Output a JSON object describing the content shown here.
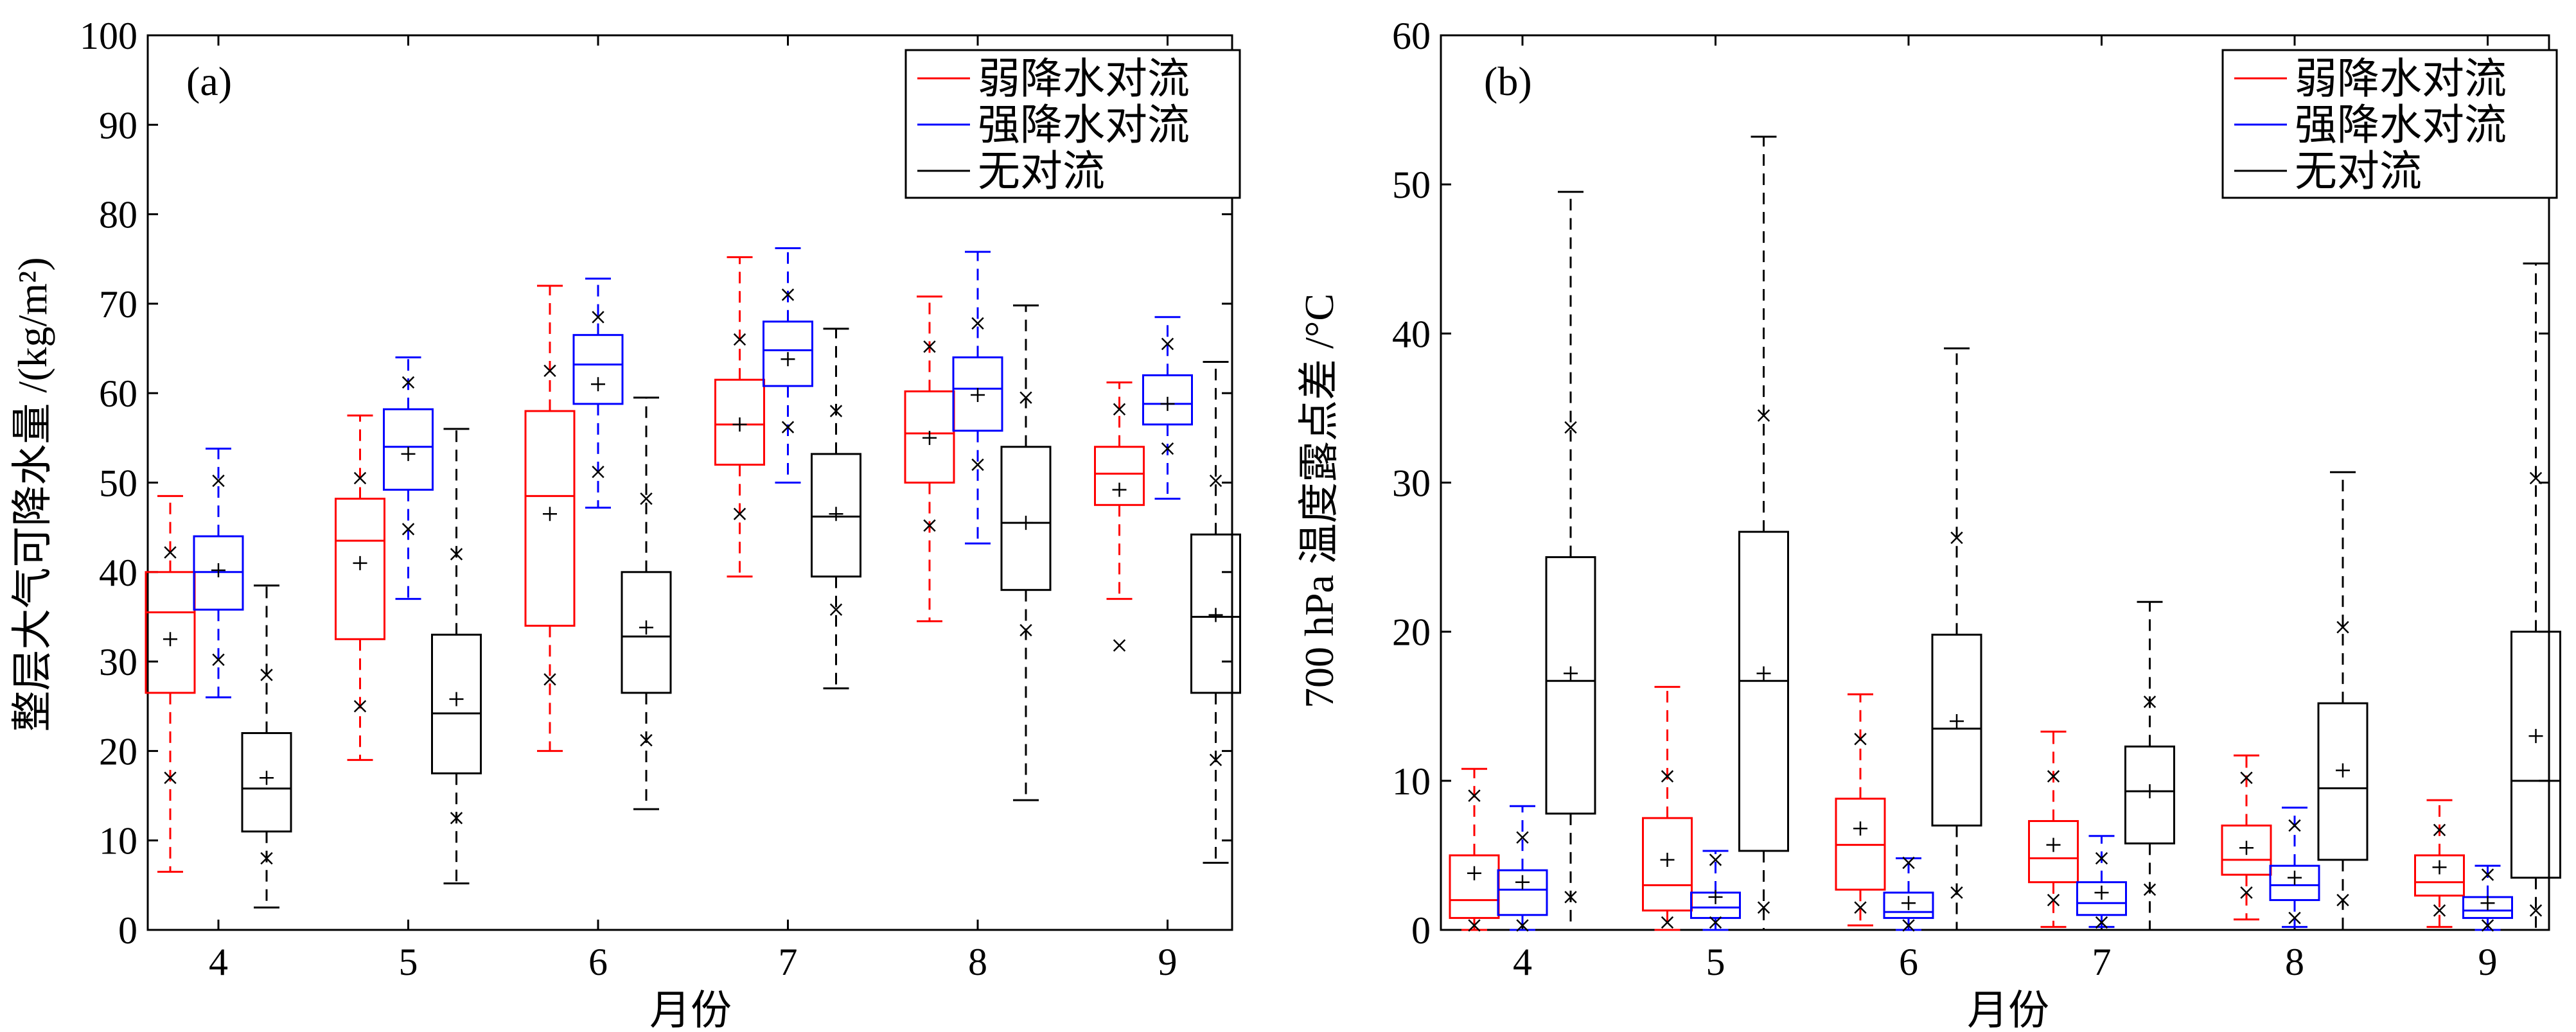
{
  "chart_data": [
    {
      "type": "box",
      "panel_label": "(a)",
      "xlabel": "月份",
      "ylabel": "整层大气可降水量 /(kg/m²)",
      "ylim": [
        0,
        100
      ],
      "yticks": [
        0,
        10,
        20,
        30,
        40,
        50,
        60,
        70,
        80,
        90,
        100
      ],
      "categories": [
        "4",
        "5",
        "6",
        "7",
        "8",
        "9"
      ],
      "legend_position": "top-right",
      "grid": false,
      "series": [
        {
          "name": "弱降水对流",
          "color": "#ff0000",
          "boxes": [
            {
              "whisker_low": 6.5,
              "q1": 26.5,
              "median": 35.5,
              "q3": 40,
              "whisker_high": 48.5,
              "mean": 32.5,
              "p_low": 17,
              "p_high": 42.2
            },
            {
              "whisker_low": 19,
              "q1": 32.5,
              "median": 43.5,
              "q3": 48.2,
              "whisker_high": 57.5,
              "mean": 41,
              "p_low": 25,
              "p_high": 50.5
            },
            {
              "whisker_low": 20,
              "q1": 34,
              "median": 48.5,
              "q3": 58,
              "whisker_high": 72,
              "mean": 46.5,
              "p_low": 28,
              "p_high": 62.5
            },
            {
              "whisker_low": 39.5,
              "q1": 52,
              "median": 56.5,
              "q3": 61.5,
              "whisker_high": 75.2,
              "mean": 56.5,
              "p_low": 46.5,
              "p_high": 66
            },
            {
              "whisker_low": 34.5,
              "q1": 50,
              "median": 55.5,
              "q3": 60.2,
              "whisker_high": 70.8,
              "mean": 55,
              "p_low": 45.2,
              "p_high": 65.2
            },
            {
              "whisker_low": 37,
              "q1": 47.5,
              "median": 51,
              "q3": 54,
              "whisker_high": 61.2,
              "mean": 49.2,
              "p_low": 31.8,
              "p_high": 58.2
            }
          ]
        },
        {
          "name": "强降水对流",
          "color": "#0000ff",
          "boxes": [
            {
              "whisker_low": 26,
              "q1": 35.8,
              "median": 40,
              "q3": 44,
              "whisker_high": 53.8,
              "mean": 40.2,
              "p_low": 30.2,
              "p_high": 50.2
            },
            {
              "whisker_low": 37,
              "q1": 49.2,
              "median": 54,
              "q3": 58.2,
              "whisker_high": 64,
              "mean": 53.2,
              "p_low": 44.8,
              "p_high": 61.2
            },
            {
              "whisker_low": 47.2,
              "q1": 58.8,
              "median": 63.2,
              "q3": 66.5,
              "whisker_high": 72.8,
              "mean": 61,
              "p_low": 51.2,
              "p_high": 68.5
            },
            {
              "whisker_low": 50,
              "q1": 60.8,
              "median": 64.8,
              "q3": 68,
              "whisker_high": 76.2,
              "mean": 63.8,
              "p_low": 56.2,
              "p_high": 71
            },
            {
              "whisker_low": 43.2,
              "q1": 55.8,
              "median": 60.5,
              "q3": 64,
              "whisker_high": 75.8,
              "mean": 59.8,
              "p_low": 52,
              "p_high": 67.8
            },
            {
              "whisker_low": 48.2,
              "q1": 56.5,
              "median": 58.8,
              "q3": 62,
              "whisker_high": 68.5,
              "mean": 58.8,
              "p_low": 53.8,
              "p_high": 65.5
            }
          ]
        },
        {
          "name": "无对流",
          "color": "#000000",
          "boxes": [
            {
              "whisker_low": 2.5,
              "q1": 11,
              "median": 15.8,
              "q3": 22,
              "whisker_high": 38.5,
              "mean": 17,
              "p_low": 8,
              "p_high": 28.5
            },
            {
              "whisker_low": 5.2,
              "q1": 17.5,
              "median": 24.2,
              "q3": 33,
              "whisker_high": 56,
              "mean": 25.8,
              "p_low": 12.5,
              "p_high": 42
            },
            {
              "whisker_low": 13.5,
              "q1": 26.5,
              "median": 32.8,
              "q3": 40,
              "whisker_high": 59.5,
              "mean": 33.8,
              "p_low": 21.2,
              "p_high": 48.2
            },
            {
              "whisker_low": 27,
              "q1": 39.5,
              "median": 46.2,
              "q3": 53.2,
              "whisker_high": 67.2,
              "mean": 46.5,
              "p_low": 35.8,
              "p_high": 58
            },
            {
              "whisker_low": 14.5,
              "q1": 38,
              "median": 45.5,
              "q3": 54,
              "whisker_high": 69.8,
              "mean": 45.5,
              "p_low": 33.5,
              "p_high": 59.5
            },
            {
              "whisker_low": 7.5,
              "q1": 26.5,
              "median": 35,
              "q3": 44.2,
              "whisker_high": 63.5,
              "mean": 35.2,
              "p_low": 19,
              "p_high": 50.2
            }
          ]
        }
      ]
    },
    {
      "type": "box",
      "panel_label": "(b)",
      "xlabel": "月份",
      "ylabel": "700 hPa 温度露点差 /°C",
      "ylim": [
        0,
        60
      ],
      "yticks": [
        0,
        10,
        20,
        30,
        40,
        50,
        60
      ],
      "categories": [
        "4",
        "5",
        "6",
        "7",
        "8",
        "9"
      ],
      "legend_position": "top-right",
      "grid": false,
      "series": [
        {
          "name": "弱降水对流",
          "color": "#ff0000",
          "boxes": [
            {
              "whisker_low": 0,
              "q1": 0.8,
              "median": 2,
              "q3": 5,
              "whisker_high": 10.8,
              "mean": 3.8,
              "p_low": 0.3,
              "p_high": 9
            },
            {
              "whisker_low": 0,
              "q1": 1.3,
              "median": 3,
              "q3": 7.5,
              "whisker_high": 16.3,
              "mean": 4.7,
              "p_low": 0.5,
              "p_high": 10.3
            },
            {
              "whisker_low": 0.3,
              "q1": 2.7,
              "median": 5.7,
              "q3": 8.8,
              "whisker_high": 15.8,
              "mean": 6.8,
              "p_low": 1.5,
              "p_high": 12.8
            },
            {
              "whisker_low": 0.2,
              "q1": 3.2,
              "median": 4.8,
              "q3": 7.3,
              "whisker_high": 13.3,
              "mean": 5.7,
              "p_low": 2,
              "p_high": 10.3
            },
            {
              "whisker_low": 0.7,
              "q1": 3.7,
              "median": 4.7,
              "q3": 7,
              "whisker_high": 11.7,
              "mean": 5.5,
              "p_low": 2.5,
              "p_high": 10.2
            },
            {
              "whisker_low": 0.2,
              "q1": 2.3,
              "median": 3.2,
              "q3": 5,
              "whisker_high": 8.7,
              "mean": 4.2,
              "p_low": 1.3,
              "p_high": 6.7
            }
          ]
        },
        {
          "name": "强降水对流",
          "color": "#0000ff",
          "boxes": [
            {
              "whisker_low": 0,
              "q1": 1,
              "median": 2.7,
              "q3": 4,
              "whisker_high": 8.3,
              "mean": 3.2,
              "p_low": 0.3,
              "p_high": 6.2
            },
            {
              "whisker_low": 0,
              "q1": 0.8,
              "median": 1.5,
              "q3": 2.5,
              "whisker_high": 5.3,
              "mean": 2.2,
              "p_low": 0.5,
              "p_high": 4.7
            },
            {
              "whisker_low": 0,
              "q1": 0.8,
              "median": 1.2,
              "q3": 2.5,
              "whisker_high": 4.8,
              "mean": 1.8,
              "p_low": 0.3,
              "p_high": 4.5
            },
            {
              "whisker_low": 0.2,
              "q1": 1,
              "median": 1.8,
              "q3": 3.2,
              "whisker_high": 6.3,
              "mean": 2.5,
              "p_low": 0.5,
              "p_high": 4.8
            },
            {
              "whisker_low": 0.2,
              "q1": 2,
              "median": 3,
              "q3": 4.3,
              "whisker_high": 8.2,
              "mean": 3.5,
              "p_low": 0.8,
              "p_high": 7
            },
            {
              "whisker_low": 0,
              "q1": 0.8,
              "median": 1.3,
              "q3": 2.2,
              "whisker_high": 4.3,
              "mean": 1.8,
              "p_low": 0.3,
              "p_high": 3.7
            }
          ]
        },
        {
          "name": "无对流",
          "color": "#000000",
          "boxes": [
            {
              "whisker_low": 0,
              "q1": 7.8,
              "median": 16.7,
              "q3": 25,
              "whisker_high": 49.5,
              "mean": 17.2,
              "p_low": 2.2,
              "p_high": 33.7
            },
            {
              "whisker_low": 0,
              "q1": 5.3,
              "median": 16.7,
              "q3": 26.7,
              "whisker_high": 53.2,
              "mean": 17.2,
              "p_low": 1.5,
              "p_high": 34.5
            },
            {
              "whisker_low": 0,
              "q1": 7,
              "median": 13.5,
              "q3": 19.8,
              "whisker_high": 39,
              "mean": 14,
              "p_low": 2.5,
              "p_high": 26.3
            },
            {
              "whisker_low": 0,
              "q1": 5.8,
              "median": 9.3,
              "q3": 12.3,
              "whisker_high": 22,
              "mean": 9.3,
              "p_low": 2.7,
              "p_high": 15.3
            },
            {
              "whisker_low": 0,
              "q1": 4.7,
              "median": 9.5,
              "q3": 15.2,
              "whisker_high": 30.7,
              "mean": 10.7,
              "p_low": 2,
              "p_high": 20.3
            },
            {
              "whisker_low": 0,
              "q1": 3.5,
              "median": 10,
              "q3": 20,
              "whisker_high": 44.7,
              "mean": 13,
              "p_low": 1.3,
              "p_high": 30.3
            }
          ]
        }
      ]
    }
  ]
}
